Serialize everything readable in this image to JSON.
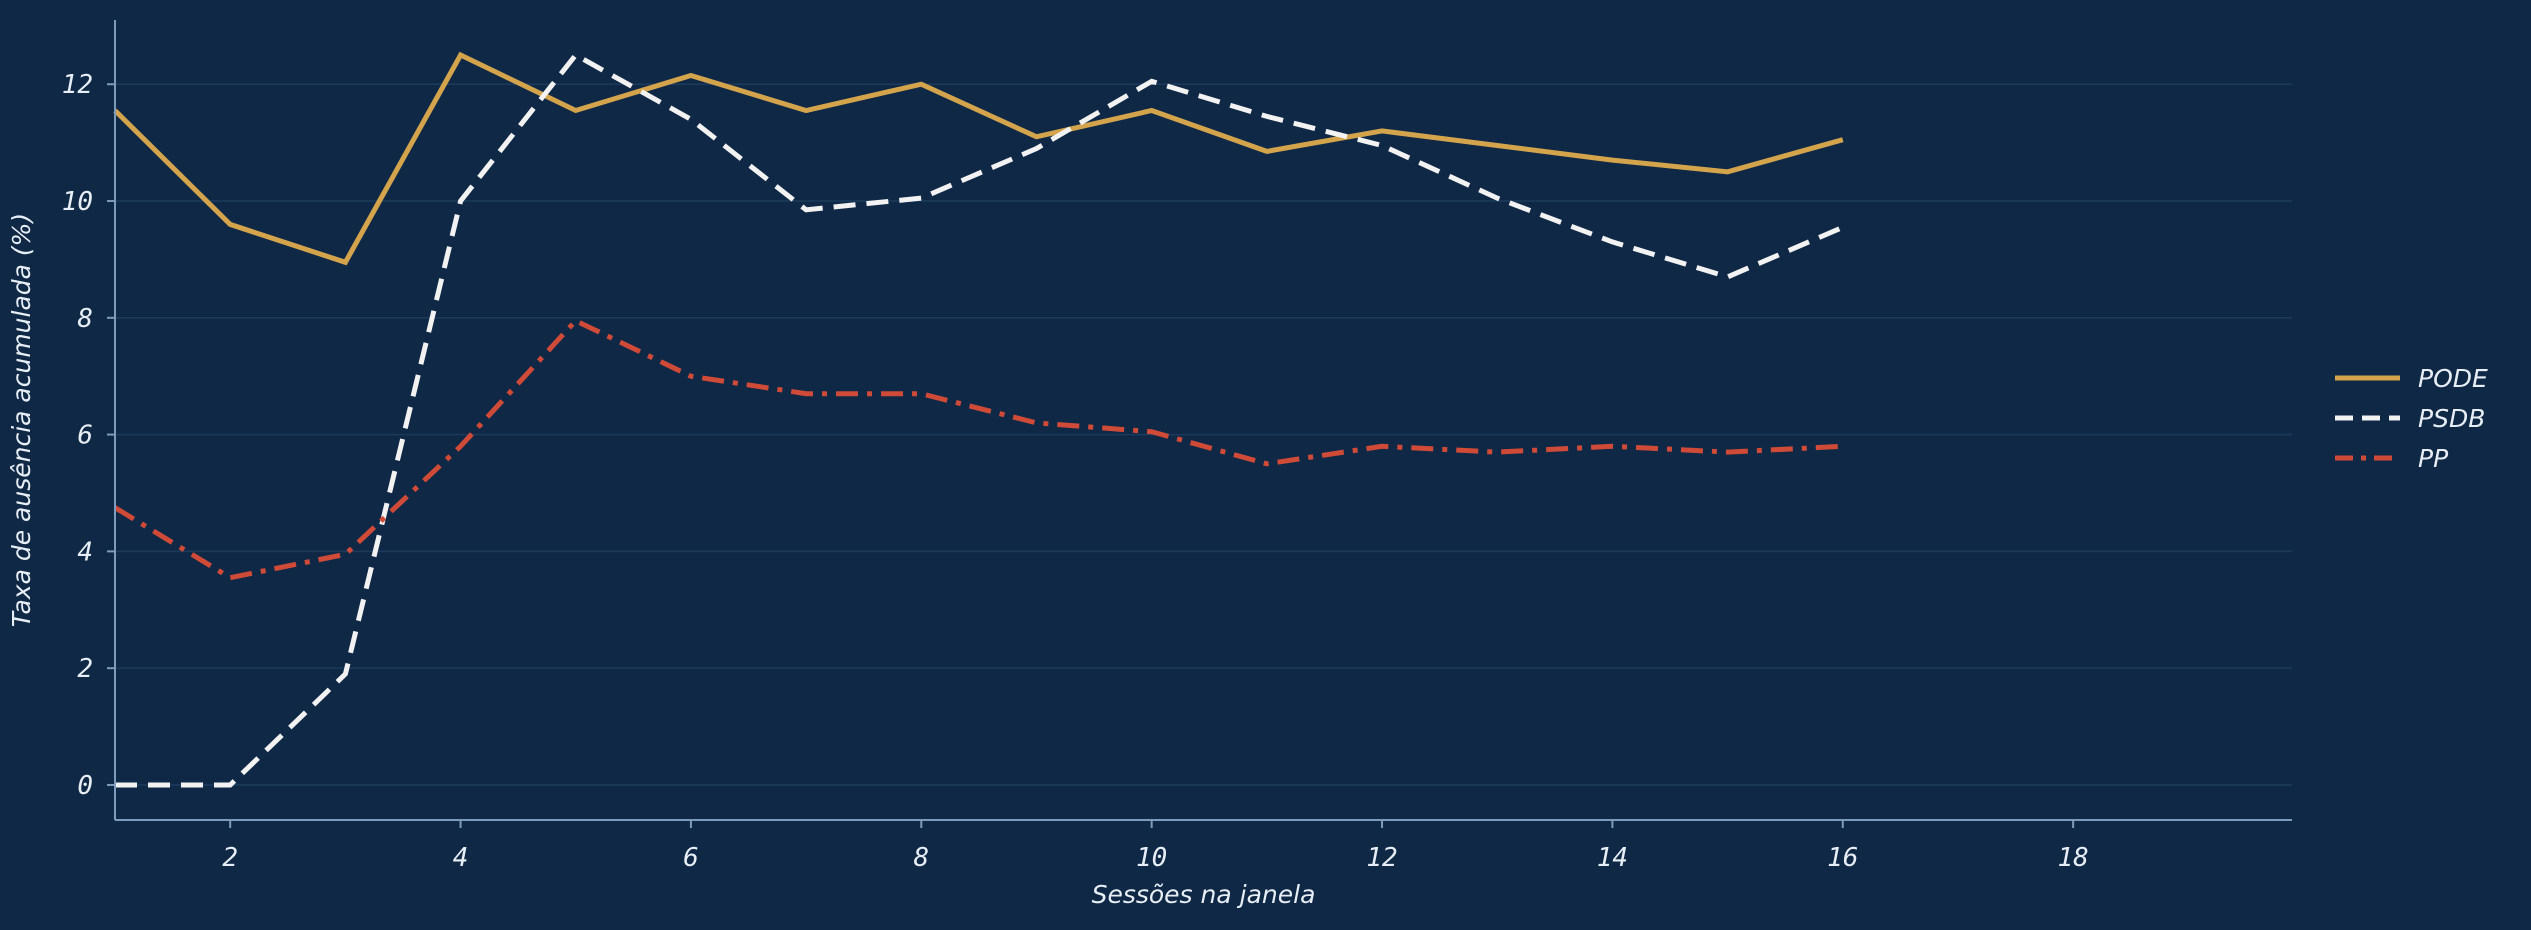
{
  "chart_data": {
    "type": "line",
    "title": "",
    "xlabel": "Sessões na janela",
    "ylabel": "Taxa de ausência acumulada (%)",
    "xlim": [
      1,
      19.9
    ],
    "ylim": [
      -0.6,
      13.1
    ],
    "xticks": [
      2,
      4,
      6,
      8,
      10,
      12,
      14,
      16,
      18
    ],
    "yticks": [
      0,
      2,
      4,
      6,
      8,
      10,
      12
    ],
    "grid": "horizontal",
    "legend_position": "right",
    "series": [
      {
        "name": "PODE",
        "color": "#d4a44c",
        "dash": "solid",
        "x": [
          1,
          2,
          3,
          4,
          5,
          6,
          7,
          8,
          9,
          10,
          11,
          12,
          13,
          14,
          15,
          16
        ],
        "y": [
          11.55,
          9.6,
          8.95,
          12.5,
          11.55,
          12.15,
          11.55,
          12.0,
          11.1,
          11.55,
          10.85,
          11.2,
          10.95,
          10.7,
          10.5,
          11.05
        ]
      },
      {
        "name": "PSDB",
        "color": "#f2f2f2",
        "dash": "dashed",
        "x": [
          1,
          2,
          3,
          4,
          5,
          6,
          7,
          8,
          9,
          10,
          11,
          12,
          13,
          14,
          15,
          16
        ],
        "y": [
          0.0,
          0.0,
          1.9,
          10.0,
          12.5,
          11.4,
          9.85,
          10.05,
          10.9,
          12.05,
          11.45,
          10.95,
          10.05,
          9.3,
          8.7,
          9.55
        ]
      },
      {
        "name": "PP",
        "color": "#d04a38",
        "dash": "dashdot",
        "x": [
          1,
          2,
          3,
          4,
          5,
          6,
          7,
          8,
          9,
          10,
          11,
          12,
          13,
          14,
          15,
          16
        ],
        "y": [
          4.75,
          3.55,
          3.95,
          5.8,
          7.95,
          7.0,
          6.7,
          6.7,
          6.2,
          6.05,
          5.5,
          5.8,
          5.7,
          5.8,
          5.7,
          5.8
        ]
      }
    ]
  }
}
